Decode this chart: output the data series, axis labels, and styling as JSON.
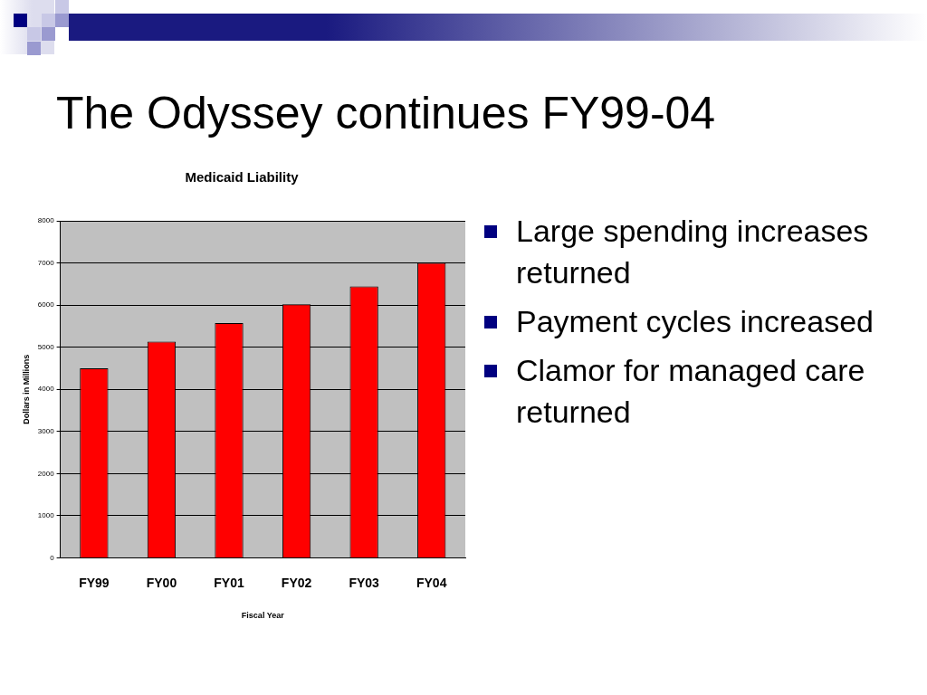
{
  "chart_data": {
    "type": "bar",
    "title": "The Odyssey continues FY99-04",
    "subtitle": "Medicaid Liability",
    "xlabel": "Fiscal Year",
    "ylabel": "Dollars in Millions",
    "categories": [
      "FY99",
      "FY00",
      "FY01",
      "FY02",
      "FY03",
      "FY04"
    ],
    "values": [
      4500,
      5130,
      5570,
      6020,
      6440,
      7000
    ],
    "color": "#ff0000",
    "ylim": [
      0,
      8000
    ],
    "yticks": [
      0,
      1000,
      2000,
      3000,
      4000,
      5000,
      6000,
      7000,
      8000
    ],
    "grid": "y",
    "legend": false,
    "annotations": [
      "Large spending increases returned",
      "Payment cycles increased",
      "Clamor for managed care returned"
    ]
  }
}
